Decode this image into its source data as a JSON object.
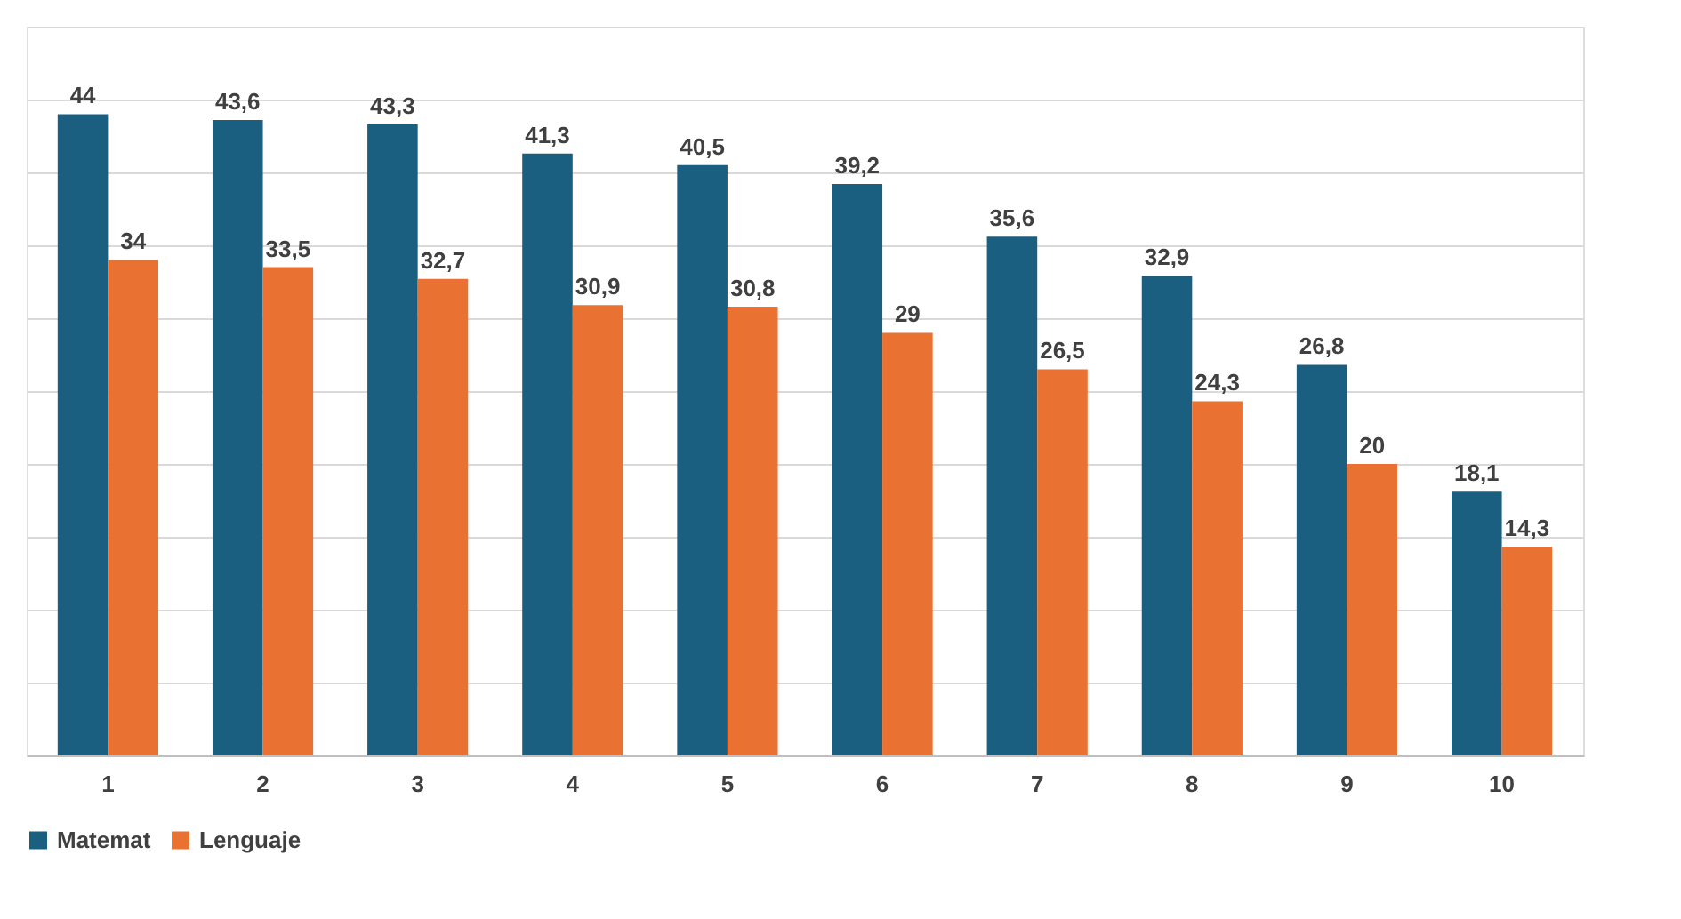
{
  "chart_data": {
    "type": "bar",
    "categories": [
      "1",
      "2",
      "3",
      "4",
      "5",
      "6",
      "7",
      "8",
      "9",
      "10"
    ],
    "series": [
      {
        "name": "Matemat",
        "color": "#1a5e80",
        "values": [
          44,
          43.6,
          43.3,
          41.3,
          40.5,
          39.2,
          35.6,
          32.9,
          26.8,
          18.1
        ],
        "value_labels": [
          "44",
          "43,6",
          "43,3",
          "41,3",
          "40,5",
          "39,2",
          "35,6",
          "32,9",
          "26,8",
          "18,1"
        ]
      },
      {
        "name": "Lenguaje",
        "color": "#e97132",
        "values": [
          34,
          33.5,
          32.7,
          30.9,
          30.8,
          29,
          26.5,
          24.3,
          20,
          14.3
        ],
        "value_labels": [
          "34",
          "33,5",
          "32,7",
          "30,9",
          "30,8",
          "29",
          "26,5",
          "24,3",
          "20",
          "14,3"
        ]
      }
    ],
    "ylim": [
      0,
      50
    ],
    "yticks": [
      {
        "value": 0,
        "label": null
      },
      {
        "value": 5,
        "label": null
      },
      {
        "value": 10,
        "label": null
      },
      {
        "value": 15,
        "label": null
      },
      {
        "value": 20,
        "label": null
      },
      {
        "value": 25,
        "label": null
      },
      {
        "value": 30,
        "label": null
      },
      {
        "value": 35,
        "label": null
      },
      {
        "value": 40,
        "label": null
      },
      {
        "value": 45,
        "label": null
      },
      {
        "value": 50,
        "label": null
      }
    ],
    "grid": "y",
    "legend": "bottom",
    "tick_labels": "x"
  }
}
